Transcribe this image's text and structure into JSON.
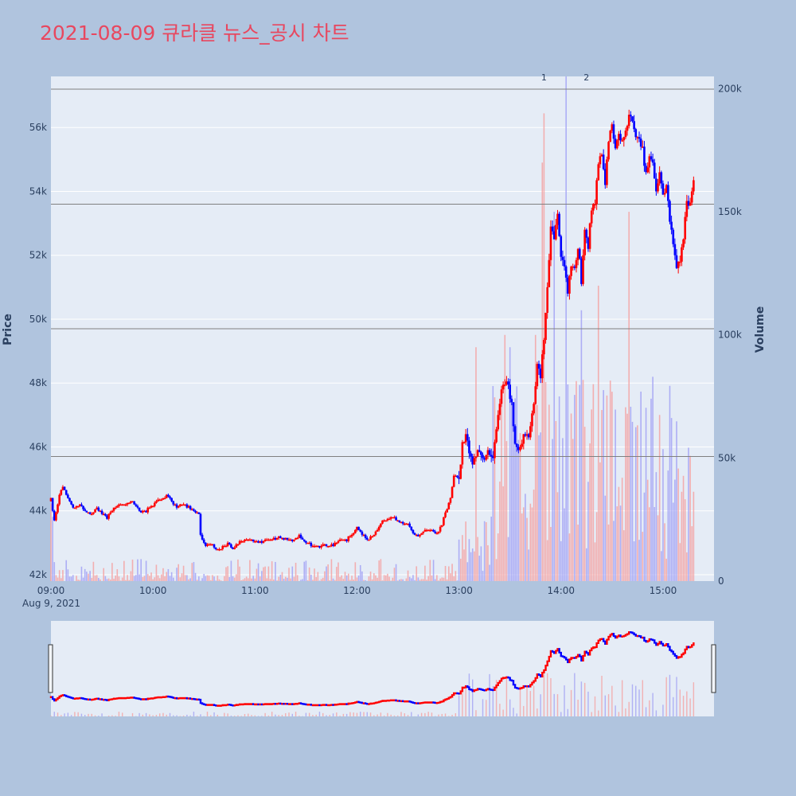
{
  "title": "2021-08-09 큐라클 뉴스_공시 차트",
  "colors": {
    "page_bg": "#b0c4de",
    "plot_bg": "#e5ecf6",
    "grid": "#ffffff",
    "title": "#e8475f",
    "up": "#ff0000",
    "down": "#0000ff",
    "volume_up": "#f4a3a3",
    "volume_down": "#a3a3f4",
    "news_line": "#808080"
  },
  "chart_data": {
    "type": "candlestick",
    "x_axis": {
      "tick_labels": [
        "09:00",
        "10:00",
        "11:00",
        "12:00",
        "13:00",
        "14:00",
        "15:00"
      ],
      "date_label": "Aug 9, 2021",
      "range": [
        "09:00",
        "15:30"
      ]
    },
    "price_axis": {
      "title": "Price",
      "range": [
        41800,
        57600
      ],
      "tick_values": [
        42000,
        44000,
        46000,
        48000,
        50000,
        52000,
        54000,
        56000
      ],
      "tick_labels": [
        "42k",
        "44k",
        "46k",
        "48k",
        "50k",
        "52k",
        "54k",
        "56k"
      ]
    },
    "volume_axis": {
      "title": "Volume",
      "range": [
        0,
        205000
      ],
      "tick_values": [
        0,
        50000,
        100000,
        150000,
        200000
      ],
      "tick_labels": [
        "0",
        "50k",
        "100k",
        "150k",
        "200k"
      ]
    },
    "news_lines": [
      {
        "label": "",
        "price": 57200
      },
      {
        "label": "",
        "price": 53600
      },
      {
        "label": "",
        "price": 49700
      },
      {
        "label": "",
        "price": 45700
      }
    ],
    "annotations": [
      {
        "label": "1",
        "time": "13:50"
      },
      {
        "label": "2",
        "time": "14:15"
      }
    ],
    "key_prices": [
      [
        "09:00",
        44400
      ],
      [
        "09:02",
        43700
      ],
      [
        "09:05",
        44500
      ],
      [
        "09:07",
        44800
      ],
      [
        "09:10",
        44400
      ],
      [
        "09:13",
        44100
      ],
      [
        "09:17",
        44200
      ],
      [
        "09:20",
        44000
      ],
      [
        "09:24",
        43900
      ],
      [
        "09:27",
        44100
      ],
      [
        "09:30",
        43900
      ],
      [
        "09:33",
        43800
      ],
      [
        "09:37",
        44100
      ],
      [
        "09:40",
        44200
      ],
      [
        "09:44",
        44200
      ],
      [
        "09:48",
        44300
      ],
      [
        "09:52",
        44000
      ],
      [
        "09:56",
        44000
      ],
      [
        "10:00",
        44200
      ],
      [
        "10:03",
        44300
      ],
      [
        "10:06",
        44400
      ],
      [
        "10:09",
        44500
      ],
      [
        "10:11",
        44300
      ],
      [
        "10:14",
        44100
      ],
      [
        "10:18",
        44200
      ],
      [
        "10:21",
        44100
      ],
      [
        "10:24",
        44000
      ],
      [
        "10:27",
        43900
      ],
      [
        "10:28",
        43200
      ],
      [
        "10:31",
        42900
      ],
      [
        "10:34",
        43000
      ],
      [
        "10:37",
        42800
      ],
      [
        "10:40",
        42800
      ],
      [
        "10:44",
        43000
      ],
      [
        "10:47",
        42800
      ],
      [
        "10:50",
        43000
      ],
      [
        "10:54",
        43100
      ],
      [
        "10:58",
        43100
      ],
      [
        "11:02",
        43000
      ],
      [
        "11:06",
        43100
      ],
      [
        "11:10",
        43100
      ],
      [
        "11:14",
        43200
      ],
      [
        "11:18",
        43100
      ],
      [
        "11:22",
        43100
      ],
      [
        "11:26",
        43200
      ],
      [
        "11:30",
        43000
      ],
      [
        "11:35",
        42900
      ],
      [
        "11:40",
        42900
      ],
      [
        "11:45",
        42900
      ],
      [
        "11:50",
        43100
      ],
      [
        "11:54",
        43100
      ],
      [
        "11:58",
        43300
      ],
      [
        "12:00",
        43500
      ],
      [
        "12:03",
        43300
      ],
      [
        "12:06",
        43100
      ],
      [
        "12:09",
        43200
      ],
      [
        "12:12",
        43400
      ],
      [
        "12:15",
        43700
      ],
      [
        "12:18",
        43700
      ],
      [
        "12:21",
        43800
      ],
      [
        "12:24",
        43700
      ],
      [
        "12:27",
        43600
      ],
      [
        "12:30",
        43600
      ],
      [
        "12:33",
        43300
      ],
      [
        "12:36",
        43200
      ],
      [
        "12:40",
        43400
      ],
      [
        "12:44",
        43400
      ],
      [
        "12:47",
        43300
      ],
      [
        "12:50",
        43600
      ],
      [
        "12:53",
        44100
      ],
      [
        "12:55",
        44400
      ],
      [
        "12:57",
        45100
      ],
      [
        "13:00",
        45000
      ],
      [
        "13:02",
        46100
      ],
      [
        "13:04",
        46300
      ],
      [
        "13:06",
        45900
      ],
      [
        "13:08",
        45500
      ],
      [
        "13:11",
        45900
      ],
      [
        "13:14",
        45600
      ],
      [
        "13:17",
        45900
      ],
      [
        "13:20",
        45700
      ],
      [
        "13:22",
        46600
      ],
      [
        "13:25",
        47800
      ],
      [
        "13:27",
        48100
      ],
      [
        "13:29",
        47900
      ],
      [
        "13:31",
        47300
      ],
      [
        "13:33",
        46000
      ],
      [
        "13:36",
        45900
      ],
      [
        "13:38",
        46300
      ],
      [
        "13:41",
        46400
      ],
      [
        "13:44",
        47300
      ],
      [
        "13:46",
        48500
      ],
      [
        "13:48",
        48200
      ],
      [
        "13:50",
        49400
      ],
      [
        "13:52",
        50900
      ],
      [
        "13:54",
        52900
      ],
      [
        "13:56",
        52600
      ],
      [
        "13:58",
        53200
      ],
      [
        "14:00",
        52000
      ],
      [
        "14:02",
        51600
      ],
      [
        "14:04",
        50900
      ],
      [
        "14:06",
        51600
      ],
      [
        "14:08",
        51500
      ],
      [
        "14:10",
        52300
      ],
      [
        "14:12",
        51200
      ],
      [
        "14:14",
        52800
      ],
      [
        "14:16",
        52300
      ],
      [
        "14:18",
        53500
      ],
      [
        "14:20",
        53600
      ],
      [
        "14:22",
        54900
      ],
      [
        "14:24",
        55100
      ],
      [
        "14:26",
        54200
      ],
      [
        "14:28",
        55600
      ],
      [
        "14:30",
        56100
      ],
      [
        "14:32",
        55300
      ],
      [
        "14:34",
        55900
      ],
      [
        "14:36",
        55500
      ],
      [
        "14:38",
        55900
      ],
      [
        "14:40",
        56400
      ],
      [
        "14:42",
        56100
      ],
      [
        "14:44",
        55800
      ],
      [
        "14:46",
        55700
      ],
      [
        "14:48",
        55300
      ],
      [
        "14:50",
        54500
      ],
      [
        "14:52",
        55200
      ],
      [
        "14:54",
        54900
      ],
      [
        "14:56",
        54100
      ],
      [
        "14:58",
        54600
      ],
      [
        "15:00",
        53800
      ],
      [
        "15:02",
        54200
      ],
      [
        "15:04",
        53100
      ],
      [
        "15:06",
        52400
      ],
      [
        "15:08",
        51500
      ],
      [
        "15:10",
        51900
      ],
      [
        "15:12",
        52600
      ],
      [
        "15:14",
        53600
      ],
      [
        "15:16",
        53700
      ],
      [
        "15:18",
        54300
      ]
    ]
  }
}
